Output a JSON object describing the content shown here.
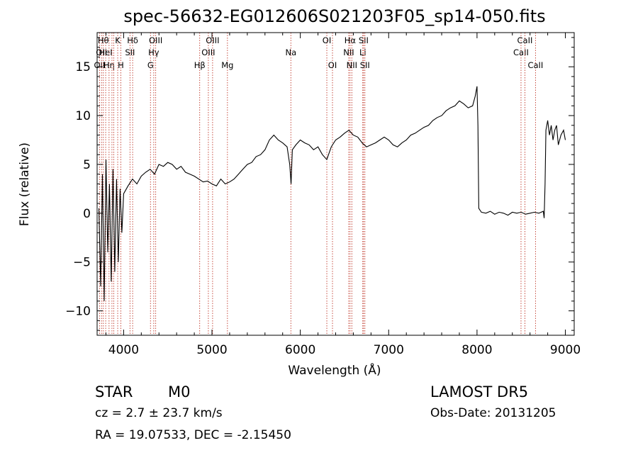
{
  "chart_data": {
    "type": "line",
    "title": "spec-56632-EG012606S021203F05_sp14-050.fits",
    "xlabel": "Wavelength (Å)",
    "ylabel": "Flux (relative)",
    "xlim": [
      3700,
      9100
    ],
    "ylim": [
      -12.5,
      18.5
    ],
    "xticks": [
      4000,
      5000,
      6000,
      7000,
      8000,
      9000
    ],
    "xtick_labels": [
      "4000",
      "5000",
      "6000",
      "7000",
      "8000",
      "9000"
    ],
    "yticks": [
      -10,
      -5,
      0,
      5,
      10,
      15
    ],
    "ytick_labels": [
      "−10",
      "−5",
      "0",
      "5",
      "10",
      "15"
    ],
    "series": [
      {
        "x": [
          3720,
          3740,
          3760,
          3780,
          3800,
          3820,
          3840,
          3860,
          3880,
          3900,
          3920,
          3940,
          3960,
          3980,
          4000,
          4050,
          4100,
          4150,
          4200,
          4250,
          4300,
          4350,
          4400,
          4450,
          4500,
          4550,
          4600,
          4650,
          4700,
          4750,
          4800,
          4850,
          4900,
          4950,
          5000,
          5050,
          5100,
          5150,
          5200,
          5250,
          5300,
          5350,
          5400,
          5450,
          5500,
          5550,
          5600,
          5650,
          5700,
          5750,
          5800,
          5850,
          5880,
          5895,
          5910,
          5950,
          6000,
          6050,
          6100,
          6150,
          6200,
          6250,
          6300,
          6350,
          6400,
          6450,
          6500,
          6550,
          6600,
          6650,
          6700,
          6750,
          6800,
          6850,
          6900,
          6950,
          7000,
          7050,
          7100,
          7150,
          7200,
          7250,
          7300,
          7350,
          7400,
          7450,
          7500,
          7550,
          7600,
          7650,
          7700,
          7750,
          7800,
          7850,
          7900,
          7950,
          7980,
          8000,
          8010,
          8020,
          8050,
          8100,
          8150,
          8200,
          8250,
          8300,
          8350,
          8400,
          8450,
          8500,
          8550,
          8600,
          8650,
          8700,
          8750,
          8760,
          8770,
          8780,
          8800,
          8820,
          8840,
          8860,
          8880,
          8900,
          8920,
          8950,
          8980,
          9000
        ],
        "y": [
          0.5,
          -7.5,
          4.0,
          -9.0,
          5.5,
          -4.0,
          3.0,
          -7.0,
          4.5,
          -6.0,
          3.5,
          -5.0,
          2.5,
          -2.0,
          2.0,
          2.8,
          3.5,
          3.0,
          3.8,
          4.2,
          4.5,
          4.0,
          5.0,
          4.8,
          5.2,
          5.0,
          4.5,
          4.8,
          4.2,
          4.0,
          3.8,
          3.5,
          3.2,
          3.3,
          3.0,
          2.8,
          3.5,
          3.0,
          3.2,
          3.5,
          4.0,
          4.5,
          5.0,
          5.2,
          5.8,
          6.0,
          6.5,
          7.5,
          8.0,
          7.5,
          7.2,
          6.8,
          5.0,
          3.0,
          6.5,
          7.0,
          7.5,
          7.2,
          7.0,
          6.5,
          6.8,
          6.0,
          5.5,
          6.8,
          7.5,
          7.8,
          8.2,
          8.5,
          8.0,
          7.8,
          7.2,
          6.8,
          7.0,
          7.2,
          7.5,
          7.8,
          7.5,
          7.0,
          6.8,
          7.2,
          7.5,
          8.0,
          8.2,
          8.5,
          8.8,
          9.0,
          9.5,
          9.8,
          10.0,
          10.5,
          10.8,
          11.0,
          11.5,
          11.2,
          10.8,
          11.0,
          12.0,
          13.0,
          9.0,
          0.5,
          0.1,
          0.0,
          0.2,
          -0.1,
          0.1,
          0.0,
          -0.2,
          0.1,
          0.0,
          0.1,
          -0.1,
          0.0,
          0.1,
          0.0,
          0.2,
          -0.5,
          3.0,
          8.5,
          9.5,
          8.0,
          9.0,
          7.5,
          8.5,
          9.0,
          7.0,
          8.0,
          8.5,
          7.5
        ]
      }
    ],
    "lines": [
      {
        "x": 3727,
        "label": "OII",
        "row": 2
      },
      {
        "x": 3750,
        "label": "OII",
        "row": 1
      },
      {
        "x": 3770,
        "label": "Hθ",
        "row": 0
      },
      {
        "x": 3797,
        "label": "HeI",
        "row": 1
      },
      {
        "x": 3835,
        "label": "Hη",
        "row": 2
      },
      {
        "x": 3868,
        "label": "",
        "row": 0
      },
      {
        "x": 3889,
        "label": "",
        "row": 0
      },
      {
        "x": 3933,
        "label": "K",
        "row": 0
      },
      {
        "x": 3968,
        "label": "H",
        "row": 2
      },
      {
        "x": 4072,
        "label": "SII",
        "row": 1
      },
      {
        "x": 4102,
        "label": "Hδ",
        "row": 0
      },
      {
        "x": 4304,
        "label": "G",
        "row": 2
      },
      {
        "x": 4341,
        "label": "Hγ",
        "row": 1
      },
      {
        "x": 4363,
        "label": "OIII",
        "row": 0
      },
      {
        "x": 4861,
        "label": "Hβ",
        "row": 2
      },
      {
        "x": 4959,
        "label": "OIII",
        "row": 1
      },
      {
        "x": 5007,
        "label": "OIII",
        "row": 0
      },
      {
        "x": 5175,
        "label": "Mg",
        "row": 2
      },
      {
        "x": 5893,
        "label": "Na",
        "row": 1
      },
      {
        "x": 6300,
        "label": "OI",
        "row": 0
      },
      {
        "x": 6364,
        "label": "OI",
        "row": 2
      },
      {
        "x": 6548,
        "label": "NII",
        "row": 1
      },
      {
        "x": 6563,
        "label": "Hα",
        "row": 0
      },
      {
        "x": 6583,
        "label": "NII",
        "row": 2
      },
      {
        "x": 6707,
        "label": "Li",
        "row": 1
      },
      {
        "x": 6716,
        "label": "SII",
        "row": 0
      },
      {
        "x": 6731,
        "label": "SII",
        "row": 2
      },
      {
        "x": 8498,
        "label": "CaII",
        "row": 1
      },
      {
        "x": 8542,
        "label": "CaII",
        "row": 0
      },
      {
        "x": 8662,
        "label": "CaII",
        "row": 2
      }
    ],
    "grid": false,
    "legend": "none"
  },
  "info": {
    "class_label": "STAR",
    "subclass_label": "M0",
    "survey": "LAMOST DR5",
    "cz": "cz = 2.7 ± 23.7 km/s",
    "obs_date": "Obs-Date: 20131205",
    "radec": "RA =  19.07533, DEC =  -2.15450"
  }
}
